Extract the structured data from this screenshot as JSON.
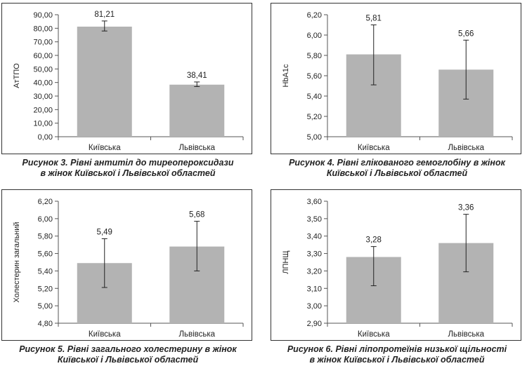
{
  "chart_data": [
    {
      "type": "bar",
      "categories": [
        "Київська",
        "Львівська"
      ],
      "values": [
        81.21,
        38.41
      ],
      "error": [
        [
          78.0,
          85.4
        ],
        [
          37.0,
          40.4
        ]
      ],
      "data_labels": [
        "81,21",
        "38,41"
      ],
      "ylabel": "AтТПО",
      "ylim": [
        0,
        90
      ],
      "yticks": [
        "0,00",
        "10,00",
        "20,00",
        "30,00",
        "40,00",
        "50,00",
        "60,00",
        "70,00",
        "80,00",
        "90,00"
      ],
      "caption": [
        "Рисунок 3.  Рівні антитіл до тиреопероксидази",
        "в жінок Київської і Львівської областей"
      ]
    },
    {
      "type": "bar",
      "categories": [
        "Київська",
        "Львівська"
      ],
      "values": [
        5.81,
        5.66
      ],
      "error": [
        [
          5.51,
          6.1
        ],
        [
          5.37,
          5.95
        ]
      ],
      "data_labels": [
        "5,81",
        "5,66"
      ],
      "ylabel": "HbA1c",
      "ylim": [
        5.0,
        6.2
      ],
      "yticks": [
        "5,00",
        "5,20",
        "5,40",
        "5,60",
        "5,80",
        "6,00",
        "6,20"
      ],
      "caption": [
        "Рисунок 4.  Рівні глікованого гемоглобіну в жінок",
        "Київської і Львівської областей"
      ]
    },
    {
      "type": "bar",
      "categories": [
        "Київська",
        "Львівська"
      ],
      "values": [
        5.49,
        5.68
      ],
      "error": [
        [
          5.21,
          5.77
        ],
        [
          5.4,
          5.97
        ]
      ],
      "data_labels": [
        "5,49",
        "5,68"
      ],
      "ylabel": "Холестерин загальний",
      "ylim": [
        4.8,
        6.2
      ],
      "yticks": [
        "4,80",
        "5,00",
        "5,20",
        "5,40",
        "5,60",
        "5,80",
        "6,00",
        "6,20"
      ],
      "caption": [
        "Рисунок 5.  Рівні загального холестерину в жінок",
        "Київської і Львівської областей"
      ]
    },
    {
      "type": "bar",
      "categories": [
        "Київська",
        "Львівська"
      ],
      "values": [
        3.28,
        3.36
      ],
      "error": [
        [
          3.115,
          3.34
        ],
        [
          3.195,
          3.525
        ]
      ],
      "data_labels": [
        "3,28",
        "3,36"
      ],
      "ylabel": "ЛПНЩ",
      "ylim": [
        2.9,
        3.6
      ],
      "yticks": [
        "2,90",
        "3,00",
        "3,10",
        "3,20",
        "3,30",
        "3,40",
        "3,50",
        "3,60"
      ],
      "caption": [
        "Рисунок 6.  Рівні ліпопротеїнів низької щільності",
        "в жінок Київської і Львівської областей"
      ]
    }
  ],
  "colors": {
    "bar": "#b3b3b3",
    "axis": "#555555",
    "frame": "#333333"
  }
}
